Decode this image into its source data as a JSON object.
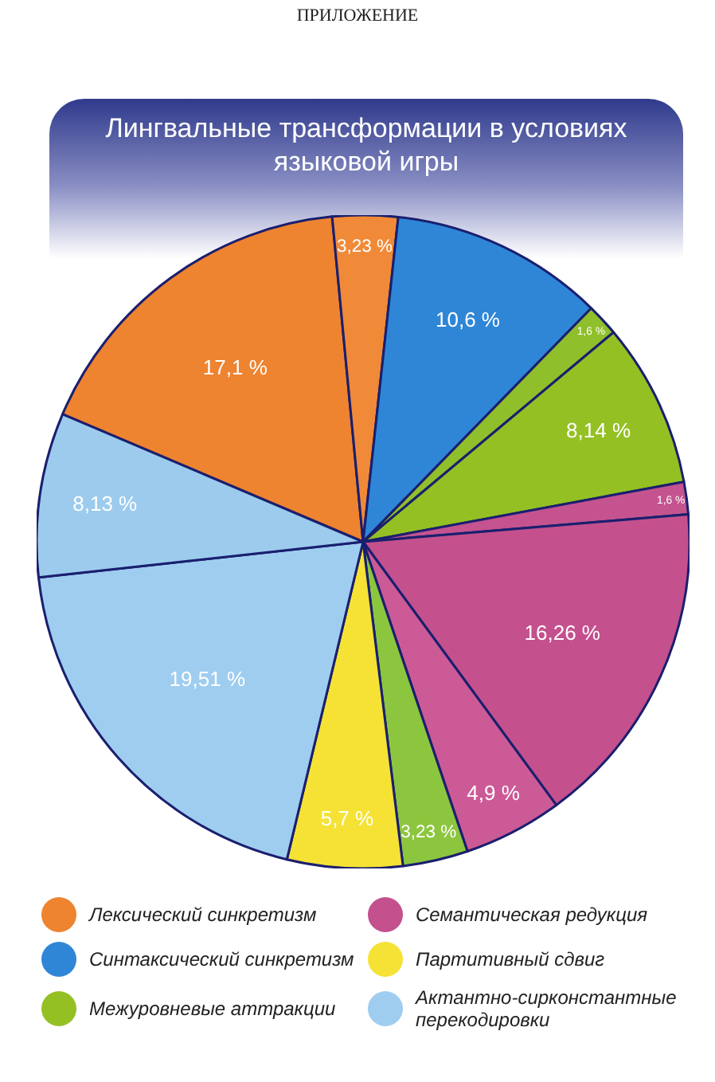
{
  "chart_data": {
    "type": "pie",
    "title": "Лингвальные трансформации в условиях языковой игры",
    "annotations": [
      "ПРИЛОЖЕНИЕ"
    ],
    "categories": [
      "Лексический синкретизм",
      null,
      "Синтаксический синкретизм",
      null,
      "Межуровневые аттракции",
      null,
      "Семантическая редукция",
      null,
      null,
      "Партитивный сдвиг",
      "Актантно-сирконстантные перекодировки",
      null
    ],
    "values": [
      17.1,
      3.23,
      10.6,
      1.6,
      8.14,
      1.6,
      16.26,
      4.9,
      3.23,
      5.7,
      19.51,
      8.13
    ],
    "value_labels": [
      "17,1 %",
      "3,23 %",
      "10,6 %",
      "1,6 %",
      "8,14 %",
      "1,6 %",
      "16,26 %",
      "4,9 %",
      "3,23 %",
      "5,7 %",
      "19,51 %",
      "8,13 %"
    ],
    "colors": [
      "#ee8330",
      "#f08a38",
      "#2f86d6",
      "#8fbf2a",
      "#95c024",
      "#c45390",
      "#c4508e",
      "#cc5a97",
      "#8cc63f",
      "#f5e235",
      "#9fcdf0",
      "#9ccbee"
    ],
    "legend": "bottom"
  }
}
